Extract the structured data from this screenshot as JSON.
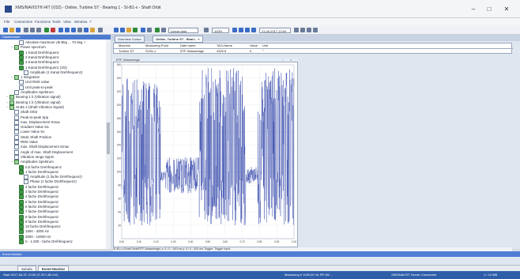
{
  "window": {
    "title": "XMS/NAVIST® HIT (V32) - Online, Turbine ST - Bearing 1 - SI-B1-x - Shaft Orbit",
    "minimize": "–",
    "maximize": "□",
    "close": "✕"
  },
  "menu": [
    "File",
    "Connection",
    "Functions",
    "Tools",
    "View",
    "Window",
    "?"
  ],
  "toolbar": {
    "time_range": "Linear data",
    "zoom": "100%",
    "datetime": "21.06.2017 13:00"
  },
  "tree_panel": {
    "header": "Databrowser",
    "items": [
      {
        "label": "Absolute maximum vib Bkg ... 70 deg +",
        "level": 3,
        "icon": "doc"
      },
      {
        "label": "Power spectrum",
        "level": 2,
        "icon": "exp"
      },
      {
        "label": "1 Kanal Drehfrequenz",
        "level": 3,
        "icon": "spec"
      },
      {
        "label": "2 Kanal Drehfrequenz",
        "level": 3,
        "icon": "spec"
      },
      {
        "label": "3 Kanal Drehfrequenz",
        "level": 3,
        "icon": "spec"
      },
      {
        "label": "1 Kanal Drehfrequenz (2/2)",
        "level": 3,
        "icon": "spec"
      },
      {
        "label": "Amplitude (1 Kanal Drehfrequenz)",
        "level": 4,
        "icon": "doc"
      },
      {
        "label": "1 Integration",
        "level": 2,
        "icon": "exp"
      },
      {
        "label": "Unit RMS value",
        "level": 3,
        "icon": "doc"
      },
      {
        "label": "Unit peak-to-peak",
        "level": 3,
        "icon": "doc"
      },
      {
        "label": "Amplitudes Spektrum",
        "level": 2,
        "icon": "doc"
      },
      {
        "label": "Bearing 1 b (Vibration signal)",
        "level": 1,
        "icon": "exp"
      },
      {
        "label": "Bearing 1 b (Vibration signal)",
        "level": 1,
        "icon": "exp"
      },
      {
        "label": "SI-B1-x (Shaft Vibration Signal)",
        "level": 1,
        "icon": "exp"
      },
      {
        "label": "Shaft Orbit",
        "level": 2,
        "icon": "doc"
      },
      {
        "label": "Peak-to-peak Spp",
        "level": 2,
        "icon": "doc"
      },
      {
        "label": "max. Displacement Smax",
        "level": 2,
        "icon": "doc"
      },
      {
        "label": "Gradient Value Sa",
        "level": 2,
        "icon": "doc"
      },
      {
        "label": "Lower Value Sv",
        "level": 2,
        "icon": "doc"
      },
      {
        "label": "Static Shaft Position",
        "level": 2,
        "icon": "doc"
      },
      {
        "label": "RMS Value",
        "level": 2,
        "icon": "doc"
      },
      {
        "label": "max. Shaft Displacement Smax",
        "level": 2,
        "icon": "doc"
      },
      {
        "label": "Angle of max. Shaft Displacement",
        "level": 2,
        "icon": "doc"
      },
      {
        "label": "Vibration range Sppm",
        "level": 2,
        "icon": "doc"
      },
      {
        "label": "Amplitudes Spektrum",
        "level": 2,
        "icon": "exp"
      },
      {
        "label": "0,5 fache Drehfrequenz",
        "level": 3,
        "icon": "spec"
      },
      {
        "label": "1 fache Drehfrequenz",
        "level": 3,
        "icon": "spec"
      },
      {
        "label": "Amplitude (1 fache Drehfrequenz)",
        "level": 4,
        "icon": "doc"
      },
      {
        "label": "Phase (1 fache Drehfrequenz)",
        "level": 4,
        "icon": "doc"
      },
      {
        "label": "2 fache Drehfrequenz",
        "level": 3,
        "icon": "spec"
      },
      {
        "label": "3 fache Drehfrequenz",
        "level": 3,
        "icon": "spec"
      },
      {
        "label": "4 fache Drehfrequenz",
        "level": 3,
        "icon": "spec"
      },
      {
        "label": "5 fache Drehfrequenz",
        "level": 3,
        "icon": "spec"
      },
      {
        "label": "6 fache Drehfrequenz",
        "level": 3,
        "icon": "spec"
      },
      {
        "label": "7 fache Drehfrequenz",
        "level": 3,
        "icon": "spec"
      },
      {
        "label": "8 fache Drehfrequenz",
        "level": 3,
        "icon": "spec"
      },
      {
        "label": "9 fache Drehfrequenz",
        "level": 3,
        "icon": "spec"
      },
      {
        "label": "10 fache Drehfrequenz",
        "level": 3,
        "icon": "spec"
      },
      {
        "label": "1500 - 3000 Hz",
        "level": 3,
        "icon": "spec"
      },
      {
        "label": "3000 - 10000 Hz",
        "level": 3,
        "icon": "spec"
      },
      {
        "label": "0 - 1.200 - fache Drehfrequenz",
        "level": 3,
        "icon": "spec"
      }
    ]
  },
  "doc_tabs": [
    "Overview Cursor",
    "Online, Turbine ST - Beari... ×"
  ],
  "grid": {
    "headers": [
      "Machine",
      "Measuring Point",
      "Date name",
      "TAG-Name",
      "Value",
      "Unit"
    ],
    "row": [
      "Turbine ST",
      "SI-B1-x",
      "RTF-Wasserlage",
      "4320.8",
      "0",
      "°"
    ]
  },
  "chart_panel": {
    "title": "RTF-Wasserlage"
  },
  "chart_data": {
    "type": "line",
    "title": "",
    "xlabel": "",
    "ylabel": "",
    "ylim": [
      0,
      260
    ],
    "yticks": [
      20,
      40,
      60,
      80,
      100,
      120,
      140,
      160,
      180,
      200,
      220,
      240,
      260
    ],
    "xticks": [
      "0.00",
      "0.10",
      "0.20",
      "0.30",
      "0.40",
      "0.50",
      "0.60",
      "0.70",
      "0.80",
      "0.90",
      "1.00"
    ],
    "series": [
      {
        "color": "#2b3fa6",
        "segments": [
          {
            "x0": 0.0,
            "x1": 0.225,
            "mode": "dense",
            "lo": 20,
            "hi": 240,
            "base": 120
          },
          {
            "x0": 0.225,
            "x1": 0.255,
            "mode": "calm",
            "lo": 85,
            "hi": 100,
            "base": 93
          },
          {
            "x0": 0.255,
            "x1": 0.45,
            "mode": "calm",
            "lo": 70,
            "hi": 125,
            "base": 95
          },
          {
            "x0": 0.45,
            "x1": 0.72,
            "mode": "dense",
            "lo": 20,
            "hi": 255,
            "base": 140
          },
          {
            "x0": 0.72,
            "x1": 0.79,
            "mode": "calm",
            "lo": 85,
            "hi": 110,
            "base": 95
          },
          {
            "x0": 0.79,
            "x1": 1.0,
            "mode": "dense",
            "lo": 20,
            "hi": 255,
            "base": 140
          }
        ]
      }
    ]
  },
  "chart_statusline": "SI-B1-x (Shaft Orbit/RTF-Wasserlage)   x: 0 / 0 - 000 ms   y: 0 / 0 - 000 ms   Trigger: Trigger Input",
  "lower_panel": {
    "header": "Event Monitor"
  },
  "bottom_tabs": [
    "Suhola",
    "Event Monitor"
  ],
  "statusbar": {
    "left": "Start 2017-06-21 13:00 (G 20 0.80 mV)",
    "center": "Measuring 0   1000,00 Hz   RP 4M   ...",
    "right": "XMS/NAVIST Server Connected",
    "far_right": "1 / 12 MB"
  }
}
